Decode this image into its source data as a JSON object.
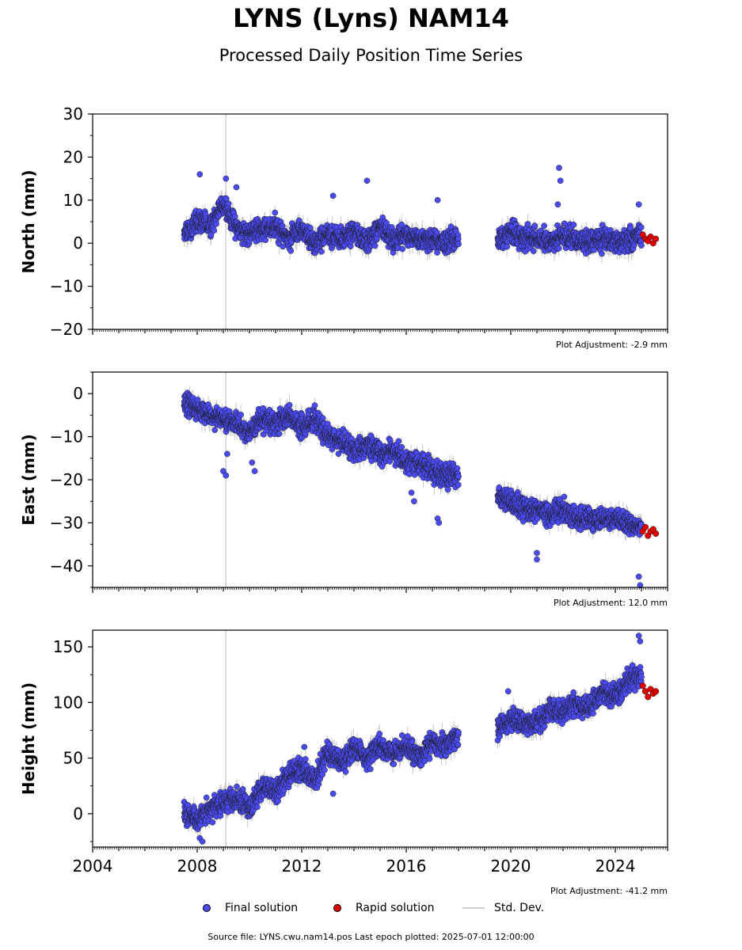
{
  "page": {
    "title": "LYNS (Lyns) NAM14",
    "subtitle": "Processed Daily Position Time Series",
    "footer": "Source file: LYNS.cwu.nam14.pos  Last epoch plotted: 2025-07-01 12:00:00"
  },
  "legend": {
    "final": "Final solution",
    "rapid": "Rapid solution",
    "std": "Std. Dev."
  },
  "colors": {
    "final": "#4b4bf5",
    "rapid": "#e00000",
    "std": "#c8c8c8",
    "marker_edge": "#1a1a1a",
    "event_line": "#d0d0d0"
  },
  "chart_data": [
    {
      "type": "scatter",
      "name": "north",
      "ylabel": "North (mm)",
      "plot_adjustment": "Plot Adjustment: -2.9 mm",
      "ylim": [
        -20,
        30
      ],
      "yticks": [
        -20,
        -10,
        0,
        10,
        20,
        30
      ],
      "ytick_labels": [
        "−20",
        "−10",
        "0",
        "10",
        "20",
        "30"
      ],
      "xlim": [
        2004.0,
        2026.0
      ],
      "event_lines": [
        2009.1
      ],
      "final_segments": [
        {
          "x": [
            2007.5,
            2008.0,
            2008.5,
            2009.0,
            2009.3,
            2009.6,
            2010.0,
            2010.5,
            2011.0,
            2011.5,
            2012.0,
            2012.5,
            2013.0,
            2013.5,
            2014.0,
            2014.5,
            2015.0,
            2015.5,
            2016.0,
            2016.5,
            2017.0,
            2017.5,
            2018.0
          ],
          "y": [
            2,
            5,
            4,
            9,
            6,
            3,
            2,
            3,
            4,
            1,
            3,
            0,
            2,
            1,
            3,
            0,
            4,
            1,
            2,
            1,
            1,
            0,
            1
          ]
        },
        {
          "x": [
            2019.5,
            2020.0,
            2020.5,
            2021.0,
            2021.5,
            2022.0,
            2022.5,
            2023.0,
            2023.5,
            2024.0,
            2024.5,
            2025.0
          ],
          "y": [
            0,
            3,
            1,
            1,
            0,
            2,
            1,
            0,
            1,
            0,
            1,
            2
          ]
        }
      ],
      "outliers": {
        "x": [
          2008.1,
          2009.1,
          2009.5,
          2013.2,
          2014.5,
          2017.2,
          2021.8,
          2021.85,
          2021.9,
          2024.9
        ],
        "y": [
          16,
          15,
          13,
          11,
          14.5,
          10,
          9,
          17.5,
          14.5,
          9
        ]
      },
      "rapid": {
        "x": [
          2025.05,
          2025.15,
          2025.25,
          2025.35,
          2025.45,
          2025.55
        ],
        "y": [
          2,
          1,
          0.5,
          1.5,
          0,
          1
        ]
      }
    },
    {
      "type": "scatter",
      "name": "east",
      "ylabel": "East (mm)",
      "plot_adjustment": "Plot Adjustment: 12.0 mm",
      "ylim": [
        -45,
        5
      ],
      "yticks": [
        -40,
        -30,
        -20,
        -10,
        0
      ],
      "ytick_labels": [
        "−40",
        "−30",
        "−20",
        "−10",
        "0"
      ],
      "xlim": [
        2004.0,
        2026.0
      ],
      "event_lines": [
        2009.1
      ],
      "final_segments": [
        {
          "x": [
            2007.5,
            2008.0,
            2008.5,
            2009.0,
            2009.5,
            2010.0,
            2010.5,
            2011.0,
            2011.5,
            2012.0,
            2012.5,
            2013.0,
            2013.5,
            2014.0,
            2014.5,
            2015.0,
            2015.5,
            2016.0,
            2016.5,
            2017.0,
            2017.5,
            2018.0
          ],
          "y": [
            -2,
            -4,
            -5,
            -6,
            -7,
            -9,
            -6,
            -7,
            -5,
            -8,
            -6,
            -10,
            -11,
            -13,
            -12,
            -14,
            -13,
            -16,
            -16,
            -18,
            -19,
            -19
          ]
        },
        {
          "x": [
            2019.5,
            2020.0,
            2020.5,
            2021.0,
            2021.5,
            2022.0,
            2022.5,
            2023.0,
            2023.5,
            2024.0,
            2024.5,
            2025.0
          ],
          "y": [
            -23,
            -25,
            -27,
            -27,
            -28,
            -27,
            -29,
            -29,
            -29,
            -29,
            -30,
            -31
          ]
        }
      ],
      "outliers": {
        "x": [
          2009.0,
          2009.1,
          2009.15,
          2010.1,
          2010.2,
          2016.2,
          2016.3,
          2017.2,
          2017.25,
          2021.0,
          2021.0,
          2024.9,
          2024.95
        ],
        "y": [
          -18,
          -19,
          -14,
          -16,
          -18,
          -23,
          -25,
          -29,
          -30,
          -37,
          -38.5,
          -42.5,
          -44.5
        ]
      },
      "rapid": {
        "x": [
          2025.05,
          2025.15,
          2025.25,
          2025.35,
          2025.45,
          2025.55
        ],
        "y": [
          -32,
          -31,
          -33,
          -32,
          -31.5,
          -32.5
        ]
      }
    },
    {
      "type": "scatter",
      "name": "height",
      "ylabel": "Height (mm)",
      "plot_adjustment": "Plot Adjustment: -41.2 mm",
      "ylim": [
        -30,
        165
      ],
      "yticks": [
        0,
        50,
        100,
        150
      ],
      "ytick_labels": [
        "0",
        "50",
        "100",
        "150"
      ],
      "xlim": [
        2004.0,
        2026.0
      ],
      "xticks": [
        2004,
        2008,
        2012,
        2016,
        2020,
        2024
      ],
      "xtick_labels": [
        "2004",
        "2008",
        "2012",
        "2016",
        "2020",
        "2024"
      ],
      "event_lines": [
        2009.1
      ],
      "final_segments": [
        {
          "x": [
            2007.5,
            2008.0,
            2008.5,
            2009.0,
            2009.5,
            2010.0,
            2010.5,
            2011.0,
            2011.5,
            2012.0,
            2012.5,
            2013.0,
            2013.5,
            2014.0,
            2014.5,
            2015.0,
            2015.5,
            2016.0,
            2016.5,
            2017.0,
            2017.5,
            2018.0
          ],
          "y": [
            0,
            -5,
            5,
            10,
            15,
            5,
            25,
            20,
            35,
            40,
            30,
            55,
            45,
            60,
            50,
            60,
            55,
            60,
            50,
            65,
            60,
            70
          ]
        },
        {
          "x": [
            2019.5,
            2020.0,
            2020.5,
            2021.0,
            2021.5,
            2022.0,
            2022.5,
            2023.0,
            2023.5,
            2024.0,
            2024.5,
            2025.0
          ],
          "y": [
            75,
            85,
            80,
            80,
            95,
            90,
            100,
            95,
            110,
            105,
            120,
            125
          ]
        }
      ],
      "outliers": {
        "x": [
          2008.1,
          2008.2,
          2012.1,
          2013.2,
          2019.9,
          2024.9,
          2024.95
        ],
        "y": [
          -22,
          -25,
          60,
          18,
          110,
          160,
          155
        ]
      },
      "rapid": {
        "x": [
          2025.05,
          2025.15,
          2025.25,
          2025.35,
          2025.45,
          2025.55
        ],
        "y": [
          115,
          110,
          105,
          112,
          108,
          110
        ]
      }
    }
  ]
}
